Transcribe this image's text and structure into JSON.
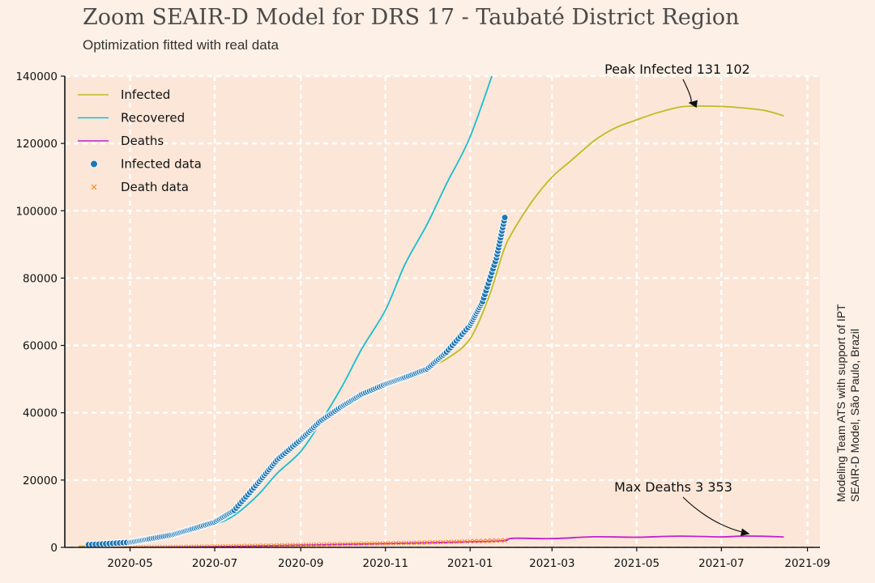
{
  "header": {
    "title": "Zoom SEAIR-D Model for DRS 17 - Taubaté District Region",
    "subtitle": "Optimization fitted with real data"
  },
  "credit": {
    "line1": "Modeling Team ATS with support of IPT",
    "line2": "SEAIR-D Model, São Paulo, Brazil"
  },
  "chart_data": {
    "type": "line",
    "xlim": [
      "2020-03-15",
      "2021-09-10"
    ],
    "ylim": [
      0,
      140000
    ],
    "grid": true,
    "legend_position": "top-left",
    "x_ticks": [
      "2020-05",
      "2020-07",
      "2020-09",
      "2020-11",
      "2021-01",
      "2021-03",
      "2021-05",
      "2021-07",
      "2021-09"
    ],
    "y_ticks": [
      0,
      20000,
      40000,
      60000,
      80000,
      100000,
      120000,
      140000
    ],
    "y_tick_labels": [
      "0",
      "20000",
      "40000",
      "60000",
      "80000",
      "100000",
      "120000",
      "140000"
    ],
    "legend": [
      "Infected",
      "Recovered",
      "Deaths",
      "Infected data",
      "Death data"
    ],
    "colors": {
      "infected": "#bcbd22",
      "recovered": "#17becf",
      "deaths": "#c41fd0",
      "infected_data": "#1f77b4",
      "death_data": "#ff7f0e",
      "grid": "#ffffff",
      "plot_bg": "#fbe6d8"
    },
    "series": [
      {
        "name": "Infected",
        "x": [
          "2020-03-25",
          "2020-04-15",
          "2020-05-01",
          "2020-05-15",
          "2020-06-01",
          "2020-06-15",
          "2020-07-01",
          "2020-07-15",
          "2020-08-01",
          "2020-08-15",
          "2020-09-01",
          "2020-09-15",
          "2020-10-01",
          "2020-10-15",
          "2020-11-01",
          "2020-11-15",
          "2020-12-01",
          "2020-12-15",
          "2021-01-01",
          "2021-01-15",
          "2021-01-25",
          "2021-02-01",
          "2021-02-15",
          "2021-03-01",
          "2021-03-15",
          "2021-04-01",
          "2021-04-15",
          "2021-05-01",
          "2021-05-15",
          "2021-06-01",
          "2021-06-15",
          "2021-07-01",
          "2021-07-15",
          "2021-08-01",
          "2021-08-15"
        ],
        "values": [
          300,
          800,
          1500,
          2500,
          3800,
          5200,
          7500,
          11000,
          18000,
          25000,
          31000,
          37000,
          41500,
          45000,
          48500,
          51000,
          53500,
          56000,
          62000,
          75000,
          88000,
          94000,
          103000,
          110000,
          115000,
          121000,
          124500,
          127000,
          129000,
          130800,
          131100,
          131000,
          130600,
          129800,
          128200
        ]
      },
      {
        "name": "Recovered",
        "x": [
          "2020-03-25",
          "2020-04-15",
          "2020-05-01",
          "2020-05-15",
          "2020-06-01",
          "2020-06-15",
          "2020-07-01",
          "2020-07-15",
          "2020-08-01",
          "2020-08-15",
          "2020-09-01",
          "2020-09-15",
          "2020-10-01",
          "2020-10-15",
          "2020-11-01",
          "2020-11-15",
          "2020-12-01",
          "2020-12-15",
          "2021-01-01",
          "2021-01-20"
        ],
        "values": [
          100,
          600,
          1500,
          2500,
          3800,
          5000,
          6800,
          9500,
          15500,
          22000,
          28500,
          37000,
          48000,
          59000,
          70500,
          84000,
          96000,
          108000,
          122000,
          144000
        ]
      },
      {
        "name": "Deaths",
        "x": [
          "2020-03-25",
          "2020-05-01",
          "2020-06-01",
          "2020-07-01",
          "2020-08-01",
          "2020-09-01",
          "2020-10-01",
          "2020-11-01",
          "2020-12-01",
          "2021-01-01",
          "2021-01-25",
          "2021-02-01",
          "2021-03-01",
          "2021-04-01",
          "2021-05-01",
          "2021-06-01",
          "2021-07-01",
          "2021-07-15",
          "2021-08-01",
          "2021-08-15"
        ],
        "values": [
          0,
          20,
          80,
          200,
          420,
          650,
          880,
          1100,
          1350,
          1650,
          1950,
          2700,
          2600,
          3150,
          3000,
          3350,
          3100,
          3353,
          3300,
          3100
        ]
      },
      {
        "name": "Infected data",
        "x": [
          "2020-04-01",
          "2020-05-01",
          "2020-05-15",
          "2020-06-01",
          "2020-06-15",
          "2020-07-01",
          "2020-07-15",
          "2020-08-01",
          "2020-08-15",
          "2020-09-01",
          "2020-09-15",
          "2020-10-01",
          "2020-10-15",
          "2020-11-01",
          "2020-11-15",
          "2020-12-01",
          "2020-12-15",
          "2021-01-01",
          "2021-01-10",
          "2021-01-20",
          "2021-01-26"
        ],
        "values": [
          800,
          1500,
          2500,
          3800,
          5500,
          7500,
          11000,
          19000,
          26000,
          32000,
          37500,
          42000,
          45500,
          48500,
          50500,
          53000,
          58000,
          66000,
          73000,
          86000,
          98000
        ]
      },
      {
        "name": "Death data",
        "x": [
          "2020-04-01",
          "2020-05-01",
          "2020-06-01",
          "2020-07-01",
          "2020-08-01",
          "2020-09-01",
          "2020-10-01",
          "2020-11-01",
          "2020-12-01",
          "2021-01-01",
          "2021-01-26"
        ],
        "values": [
          10,
          40,
          120,
          280,
          500,
          720,
          950,
          1200,
          1450,
          1800,
          2100
        ]
      }
    ],
    "annotations": [
      {
        "text": "Peak Infected 131 102",
        "x": "2021-06-15",
        "y": 131102
      },
      {
        "text": "Max Deaths 3 353",
        "x": "2021-07-15",
        "y": 3353
      }
    ]
  }
}
